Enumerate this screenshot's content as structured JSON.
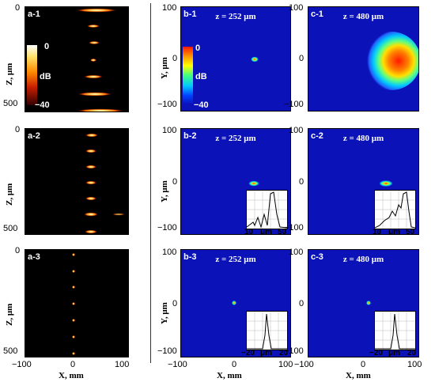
{
  "panels": {
    "a1": {
      "label": "a-1"
    },
    "a2": {
      "label": "a-2"
    },
    "a3": {
      "label": "a-3"
    },
    "b1": {
      "label": "b-1",
      "z": "z = 252 μm"
    },
    "b2": {
      "label": "b-2",
      "z": "z = 252 μm"
    },
    "b3": {
      "label": "b-3",
      "z": "z = 252 μm"
    },
    "c1": {
      "label": "c-1",
      "z": "z = 480 μm"
    },
    "c2": {
      "label": "c-2",
      "z": "z = 480 μm"
    },
    "c3": {
      "label": "c-3",
      "z": "z = 480 μm"
    }
  },
  "colorbar": {
    "top": "0",
    "unit": "dB",
    "bottom": "−40"
  },
  "axes": {
    "z_title": "Z, μm",
    "y_title": "Y, μm",
    "x_title": "X, mm",
    "z_ticks": [
      "0",
      "500"
    ],
    "y_ticks": [
      "100",
      "0",
      "−100"
    ],
    "x_ticks": [
      "−100",
      "0",
      "100"
    ]
  },
  "insets": {
    "b2": {
      "ticks": [
        "10",
        "μm",
        "50"
      ]
    },
    "c2": {
      "ticks": [
        "10",
        "μm",
        "50"
      ]
    },
    "b3": {
      "ticks": [
        "−20",
        "μm",
        "20"
      ]
    },
    "c3": {
      "ticks": [
        "−20",
        "μm",
        "20"
      ]
    }
  },
  "colors": {
    "background_field": "#0a12b8",
    "hot_spot": "#ffd24a",
    "panel_a_bg": "#000000"
  }
}
